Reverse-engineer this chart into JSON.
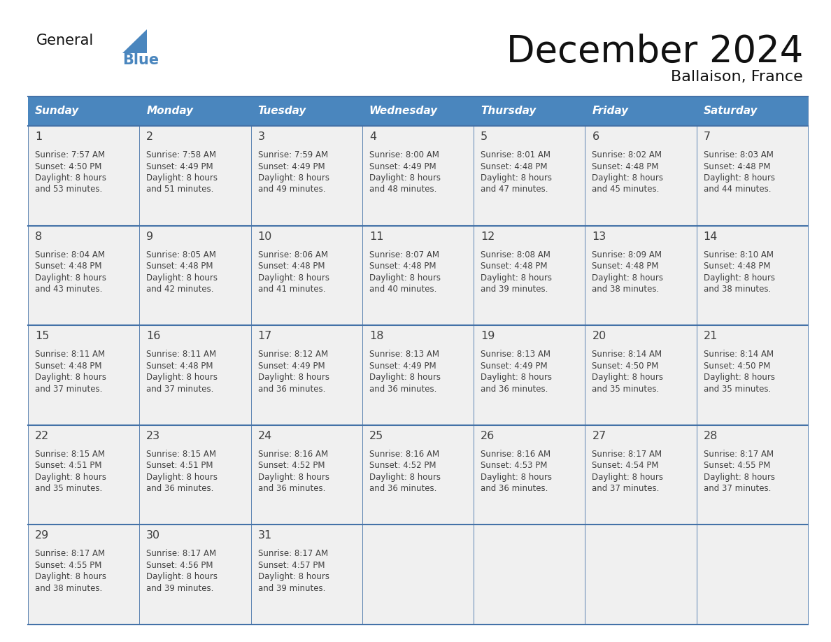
{
  "title": "December 2024",
  "subtitle": "Ballaison, France",
  "days_of_week": [
    "Sunday",
    "Monday",
    "Tuesday",
    "Wednesday",
    "Thursday",
    "Friday",
    "Saturday"
  ],
  "header_bg": "#4a86be",
  "header_text_color": "#ffffff",
  "cell_bg": "#f0f0f0",
  "border_color": "#4472a8",
  "text_color": "#404040",
  "title_color": "#111111",
  "logo_general_color": "#111111",
  "logo_blue_color": "#4a86be",
  "calendar_data": [
    [
      {
        "day": "1",
        "sunrise": "7:57 AM",
        "sunset": "4:50 PM",
        "dl1": "8 hours",
        "dl2": "and 53 minutes."
      },
      {
        "day": "2",
        "sunrise": "7:58 AM",
        "sunset": "4:49 PM",
        "dl1": "8 hours",
        "dl2": "and 51 minutes."
      },
      {
        "day": "3",
        "sunrise": "7:59 AM",
        "sunset": "4:49 PM",
        "dl1": "8 hours",
        "dl2": "and 49 minutes."
      },
      {
        "day": "4",
        "sunrise": "8:00 AM",
        "sunset": "4:49 PM",
        "dl1": "8 hours",
        "dl2": "and 48 minutes."
      },
      {
        "day": "5",
        "sunrise": "8:01 AM",
        "sunset": "4:48 PM",
        "dl1": "8 hours",
        "dl2": "and 47 minutes."
      },
      {
        "day": "6",
        "sunrise": "8:02 AM",
        "sunset": "4:48 PM",
        "dl1": "8 hours",
        "dl2": "and 45 minutes."
      },
      {
        "day": "7",
        "sunrise": "8:03 AM",
        "sunset": "4:48 PM",
        "dl1": "8 hours",
        "dl2": "and 44 minutes."
      }
    ],
    [
      {
        "day": "8",
        "sunrise": "8:04 AM",
        "sunset": "4:48 PM",
        "dl1": "8 hours",
        "dl2": "and 43 minutes."
      },
      {
        "day": "9",
        "sunrise": "8:05 AM",
        "sunset": "4:48 PM",
        "dl1": "8 hours",
        "dl2": "and 42 minutes."
      },
      {
        "day": "10",
        "sunrise": "8:06 AM",
        "sunset": "4:48 PM",
        "dl1": "8 hours",
        "dl2": "and 41 minutes."
      },
      {
        "day": "11",
        "sunrise": "8:07 AM",
        "sunset": "4:48 PM",
        "dl1": "8 hours",
        "dl2": "and 40 minutes."
      },
      {
        "day": "12",
        "sunrise": "8:08 AM",
        "sunset": "4:48 PM",
        "dl1": "8 hours",
        "dl2": "and 39 minutes."
      },
      {
        "day": "13",
        "sunrise": "8:09 AM",
        "sunset": "4:48 PM",
        "dl1": "8 hours",
        "dl2": "and 38 minutes."
      },
      {
        "day": "14",
        "sunrise": "8:10 AM",
        "sunset": "4:48 PM",
        "dl1": "8 hours",
        "dl2": "and 38 minutes."
      }
    ],
    [
      {
        "day": "15",
        "sunrise": "8:11 AM",
        "sunset": "4:48 PM",
        "dl1": "8 hours",
        "dl2": "and 37 minutes."
      },
      {
        "day": "16",
        "sunrise": "8:11 AM",
        "sunset": "4:48 PM",
        "dl1": "8 hours",
        "dl2": "and 37 minutes."
      },
      {
        "day": "17",
        "sunrise": "8:12 AM",
        "sunset": "4:49 PM",
        "dl1": "8 hours",
        "dl2": "and 36 minutes."
      },
      {
        "day": "18",
        "sunrise": "8:13 AM",
        "sunset": "4:49 PM",
        "dl1": "8 hours",
        "dl2": "and 36 minutes."
      },
      {
        "day": "19",
        "sunrise": "8:13 AM",
        "sunset": "4:49 PM",
        "dl1": "8 hours",
        "dl2": "and 36 minutes."
      },
      {
        "day": "20",
        "sunrise": "8:14 AM",
        "sunset": "4:50 PM",
        "dl1": "8 hours",
        "dl2": "and 35 minutes."
      },
      {
        "day": "21",
        "sunrise": "8:14 AM",
        "sunset": "4:50 PM",
        "dl1": "8 hours",
        "dl2": "and 35 minutes."
      }
    ],
    [
      {
        "day": "22",
        "sunrise": "8:15 AM",
        "sunset": "4:51 PM",
        "dl1": "8 hours",
        "dl2": "and 35 minutes."
      },
      {
        "day": "23",
        "sunrise": "8:15 AM",
        "sunset": "4:51 PM",
        "dl1": "8 hours",
        "dl2": "and 36 minutes."
      },
      {
        "day": "24",
        "sunrise": "8:16 AM",
        "sunset": "4:52 PM",
        "dl1": "8 hours",
        "dl2": "and 36 minutes."
      },
      {
        "day": "25",
        "sunrise": "8:16 AM",
        "sunset": "4:52 PM",
        "dl1": "8 hours",
        "dl2": "and 36 minutes."
      },
      {
        "day": "26",
        "sunrise": "8:16 AM",
        "sunset": "4:53 PM",
        "dl1": "8 hours",
        "dl2": "and 36 minutes."
      },
      {
        "day": "27",
        "sunrise": "8:17 AM",
        "sunset": "4:54 PM",
        "dl1": "8 hours",
        "dl2": "and 37 minutes."
      },
      {
        "day": "28",
        "sunrise": "8:17 AM",
        "sunset": "4:55 PM",
        "dl1": "8 hours",
        "dl2": "and 37 minutes."
      }
    ],
    [
      {
        "day": "29",
        "sunrise": "8:17 AM",
        "sunset": "4:55 PM",
        "dl1": "8 hours",
        "dl2": "and 38 minutes."
      },
      {
        "day": "30",
        "sunrise": "8:17 AM",
        "sunset": "4:56 PM",
        "dl1": "8 hours",
        "dl2": "and 39 minutes."
      },
      {
        "day": "31",
        "sunrise": "8:17 AM",
        "sunset": "4:57 PM",
        "dl1": "8 hours",
        "dl2": "and 39 minutes."
      },
      null,
      null,
      null,
      null
    ]
  ]
}
